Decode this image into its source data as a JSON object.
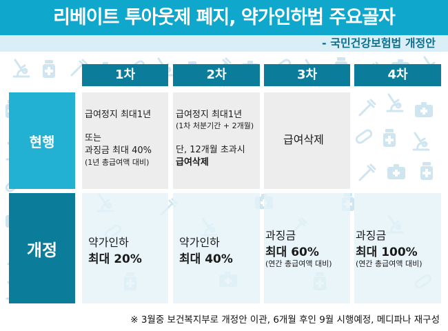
{
  "header": {
    "title": "리베이트 투아웃제 폐지, 약가인하법 주요골자",
    "subtitle": "- 국민건강보험법 개정안"
  },
  "columns": [
    "1차",
    "2차",
    "3차",
    "4차"
  ],
  "rows": {
    "current": {
      "label": "현행",
      "col1": {
        "line1": "급여정지 최대1년",
        "line2": "또는",
        "line3": "과징금 최대 40%",
        "line4": "(1년 총급여액 대비)"
      },
      "col2": {
        "line1": "급여정지 최대1년",
        "line2": "(1차 처분기간 + 2개월)",
        "line3": "단, 12개월 초과시",
        "line4": "급여삭제"
      },
      "col3": {
        "line1": "급여삭제"
      },
      "col4": {}
    },
    "revised": {
      "label": "개정",
      "col1": {
        "line1": "약가인하",
        "line2": "최대 20%"
      },
      "col2": {
        "line1": "약가인하",
        "line2": "최대 40%"
      },
      "col3": {
        "line1": "과징금",
        "line2": "최대 60%",
        "line3": "(연간 총급여액 대비)"
      },
      "col4": {
        "line1": "과징금",
        "line2": "최대 100%",
        "line3": "(연간 총급여액 대비)"
      }
    }
  },
  "footnote": "※ 3월중 보건복지부로 개정안 이관, 6개월 후인 9월 시행예정, 메디파나 재구성",
  "colors": {
    "title_bar": "#10a7cc",
    "column_header": "#0b7d9b",
    "row_current": "#22b0d3",
    "row_revised": "#0b7d9b",
    "pattern": "#cfe6f0"
  },
  "pattern_icons": [
    "microscope-icon",
    "medicine-bottle-icon",
    "syringe-icon",
    "first-aid-kit-icon",
    "pill-capsule-icon",
    "stethoscope-icon"
  ]
}
